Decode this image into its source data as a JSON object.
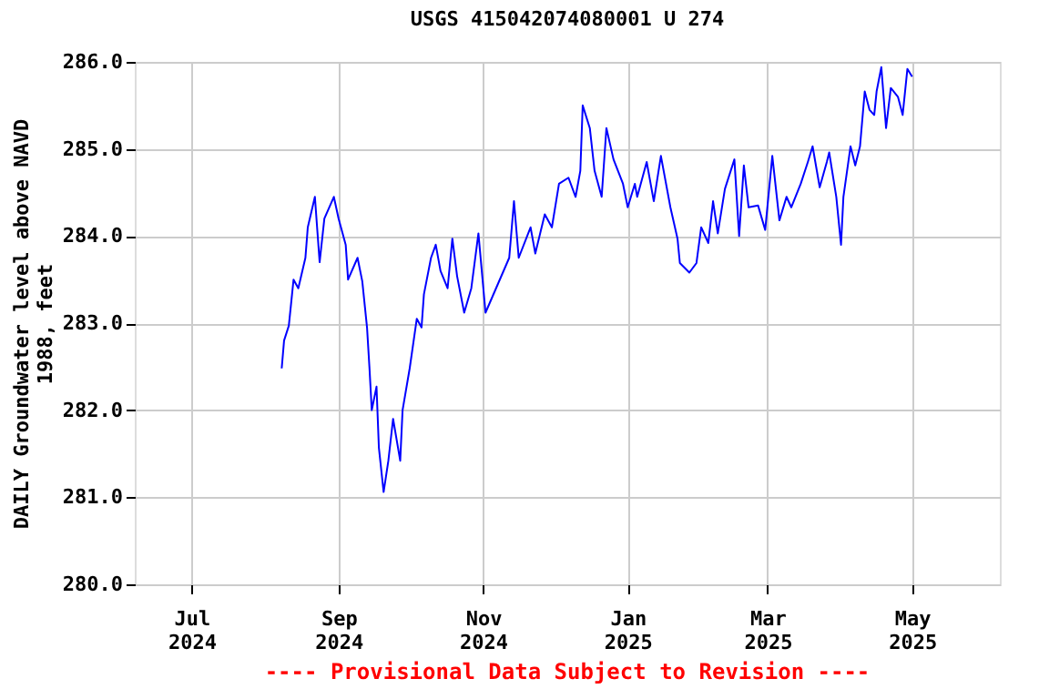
{
  "chart_data": {
    "type": "line",
    "title": "USGS 415042074080001 U 274",
    "ylabel": "DAILY Groundwater level above NAVD 1988, feet",
    "annotations": [
      "---- Provisional Data Subject to Revision ----"
    ],
    "x": [
      "2024-08-08",
      "2024-08-09",
      "2024-08-11",
      "2024-08-13",
      "2024-08-15",
      "2024-08-18",
      "2024-08-19",
      "2024-08-22",
      "2024-08-24",
      "2024-08-26",
      "2024-08-30",
      "2024-09-01",
      "2024-09-04",
      "2024-09-05",
      "2024-09-09",
      "2024-09-11",
      "2024-09-13",
      "2024-09-14",
      "2024-09-15",
      "2024-09-17",
      "2024-09-18",
      "2024-09-20",
      "2024-09-22",
      "2024-09-24",
      "2024-09-27",
      "2024-09-28",
      "2024-10-01",
      "2024-10-04",
      "2024-10-06",
      "2024-10-07",
      "2024-10-10",
      "2024-10-12",
      "2024-10-14",
      "2024-10-17",
      "2024-10-19",
      "2024-10-21",
      "2024-10-24",
      "2024-10-27",
      "2024-10-30",
      "2024-11-02",
      "2024-11-12",
      "2024-11-14",
      "2024-11-16",
      "2024-11-21",
      "2024-11-23",
      "2024-11-27",
      "2024-11-30",
      "2024-12-03",
      "2024-12-07",
      "2024-12-10",
      "2024-12-12",
      "2024-12-13",
      "2024-12-16",
      "2024-12-18",
      "2024-12-21",
      "2024-12-23",
      "2024-12-26",
      "2024-12-30",
      "2025-01-01",
      "2025-01-04",
      "2025-01-05",
      "2025-01-09",
      "2025-01-12",
      "2025-01-15",
      "2025-01-19",
      "2025-01-22",
      "2025-01-23",
      "2025-01-27",
      "2025-01-30",
      "2025-02-01",
      "2025-02-04",
      "2025-02-06",
      "2025-02-08",
      "2025-02-11",
      "2025-02-15",
      "2025-02-17",
      "2025-02-19",
      "2025-02-21",
      "2025-02-25",
      "2025-02-28",
      "2025-03-03",
      "2025-03-06",
      "2025-03-09",
      "2025-03-11",
      "2025-03-15",
      "2025-03-18",
      "2025-03-20",
      "2025-03-23",
      "2025-03-26",
      "2025-03-27",
      "2025-03-30",
      "2025-04-01",
      "2025-04-02",
      "2025-04-05",
      "2025-04-07",
      "2025-04-09",
      "2025-04-11",
      "2025-04-13",
      "2025-04-15",
      "2025-04-16",
      "2025-04-18",
      "2025-04-20",
      "2025-04-22",
      "2025-04-25",
      "2025-04-27",
      "2025-04-29",
      "2025-05-01"
    ],
    "series": [
      {
        "color": "#0000ff",
        "values": [
          282.48,
          282.8,
          282.97,
          283.5,
          283.4,
          283.75,
          284.1,
          284.45,
          283.7,
          284.2,
          284.45,
          284.2,
          283.9,
          283.5,
          283.75,
          283.48,
          282.95,
          282.5,
          282.0,
          282.27,
          281.57,
          281.06,
          281.42,
          281.9,
          281.42,
          282.0,
          282.48,
          283.05,
          282.95,
          283.33,
          283.75,
          283.9,
          283.6,
          283.4,
          283.97,
          283.54,
          283.12,
          283.4,
          284.03,
          283.12,
          283.75,
          284.4,
          283.75,
          284.1,
          283.8,
          284.25,
          284.1,
          284.6,
          284.67,
          284.45,
          284.75,
          285.5,
          285.24,
          284.75,
          284.45,
          285.24,
          284.88,
          284.6,
          284.33,
          284.6,
          284.45,
          284.85,
          284.4,
          284.92,
          284.33,
          283.97,
          283.69,
          283.58,
          283.69,
          284.1,
          283.92,
          284.4,
          284.03,
          284.54,
          284.88,
          284.0,
          284.81,
          284.33,
          284.35,
          284.07,
          284.92,
          284.18,
          284.45,
          284.33,
          284.6,
          284.85,
          285.03,
          284.56,
          284.85,
          284.96,
          284.45,
          283.9,
          284.45,
          285.03,
          284.81,
          285.03,
          285.66,
          285.45,
          285.39,
          285.66,
          285.94,
          285.24,
          285.7,
          285.6,
          285.39,
          285.92,
          285.83
        ]
      }
    ],
    "xlim": [
      "2024-06-07",
      "2025-06-07"
    ],
    "xticks": [
      {
        "value": "2024-07-01",
        "label": "Jul\n2024"
      },
      {
        "value": "2024-09-01",
        "label": "Sep\n2024"
      },
      {
        "value": "2024-11-01",
        "label": "Nov\n2024"
      },
      {
        "value": "2025-01-01",
        "label": "Jan\n2025"
      },
      {
        "value": "2025-03-01",
        "label": "Mar\n2025"
      },
      {
        "value": "2025-05-01",
        "label": "May\n2025"
      }
    ],
    "ylim": [
      280,
      286
    ],
    "yticks": [
      {
        "value": 280,
        "label": "280.0"
      },
      {
        "value": 281,
        "label": "281.0"
      },
      {
        "value": 282,
        "label": "282.0"
      },
      {
        "value": 283,
        "label": "283.0"
      },
      {
        "value": 284,
        "label": "284.0"
      },
      {
        "value": 285,
        "label": "285.0"
      },
      {
        "value": 286,
        "label": "286.0"
      }
    ],
    "grid": true,
    "line_style": "solid",
    "marker": "none"
  }
}
